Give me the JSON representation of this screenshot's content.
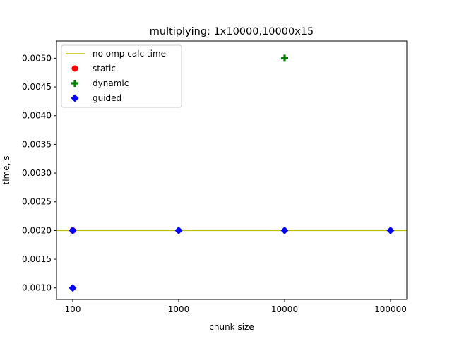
{
  "chart_data": {
    "type": "scatter",
    "title": "multiplying: 1x10000,10000x15",
    "xlabel": "chunk size",
    "ylabel": "time, s",
    "x_scale": "log",
    "x_ticks": [
      100,
      1000,
      10000,
      100000
    ],
    "x_tick_labels": [
      "100",
      "1000",
      "10000",
      "100000"
    ],
    "y_ticks": [
      0.001,
      0.0015,
      0.002,
      0.0025,
      0.003,
      0.0035,
      0.004,
      0.0045,
      0.005
    ],
    "y_tick_labels": [
      "0.0010",
      "0.0015",
      "0.0020",
      "0.0025",
      "0.0030",
      "0.0035",
      "0.0040",
      "0.0045",
      "0.0050"
    ],
    "ylim": [
      0.0008,
      0.0053
    ],
    "grid": false,
    "legend_position": "top-left",
    "reference_line": {
      "name": "no omp calc time",
      "y": 0.002,
      "color": "#bfbf00"
    },
    "series": [
      {
        "name": "static",
        "marker": "circle",
        "color": "#ff0000",
        "x": [
          100
        ],
        "y": [
          0.002
        ]
      },
      {
        "name": "dynamic",
        "marker": "plus",
        "color": "#008000",
        "x": [
          10000
        ],
        "y": [
          0.005
        ]
      },
      {
        "name": "guided",
        "marker": "diamond",
        "color": "#0000ff",
        "x": [
          100,
          100,
          1000,
          10000,
          100000
        ],
        "y": [
          0.001,
          0.002,
          0.002,
          0.002,
          0.002
        ]
      }
    ]
  }
}
